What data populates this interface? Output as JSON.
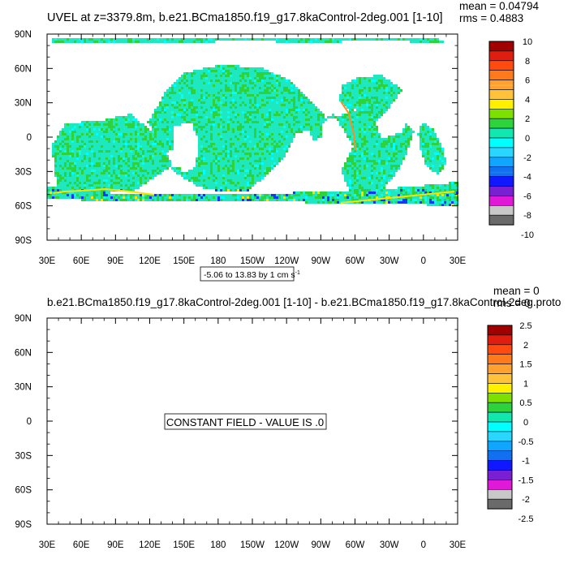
{
  "chart_data": [
    {
      "type": "heatmap",
      "title": "UVEL at z=3379.8m, b.e21.BCma1850.f19_g17.8kaControl-2deg.001 [1-10]",
      "stats": [
        "mean = 0.04794",
        "rms = 0.4883"
      ],
      "info": "-5.06 to 13.83 by 1 cm s",
      "info_superscript": "-1",
      "x_ticks": [
        "30E",
        "60E",
        "90E",
        "120E",
        "150E",
        "180",
        "150W",
        "120W",
        "90W",
        "60W",
        "30W",
        "0",
        "30E"
      ],
      "y_ticks": [
        "90N",
        "60N",
        "30N",
        "0",
        "30S",
        "60S",
        "90S"
      ],
      "colorbar_labels": [
        "10",
        "8",
        "6",
        "4",
        "2",
        "0",
        "-2",
        "-4",
        "-6",
        "-8",
        "-10"
      ],
      "colorbar_colors": [
        "#a00000",
        "#e01e10",
        "#ff4a10",
        "#ff7a1a",
        "#ffa030",
        "#ffc23a",
        "#fff000",
        "#7ee000",
        "#2ed23a",
        "#10e8b0",
        "#00ffff",
        "#28d6ff",
        "#10a6ff",
        "#1270f0",
        "#1018ff",
        "#7820d2",
        "#e018d8",
        "#c8c8c8",
        "#6a6a6a"
      ],
      "colorbar_gaps": [
        "#ffb040",
        "#1e7ef0"
      ],
      "field_colors": {
        "dominant": "#1ee8c0",
        "secondary": "#2ed23a",
        "light": "#00ffff",
        "blue": "#1238ff",
        "yellow": "#ffe100",
        "orange": "#ff8c1a"
      }
    },
    {
      "type": "heatmap",
      "title": "b.e21.BCma1850.f19_g17.8kaControl-2deg.001 [1-10] - b.e21.BCma1850.f19_g17.8kaControl-2deg.proto",
      "stats": [
        "mean = 0",
        "rms = 0"
      ],
      "annotation": "CONSTANT FIELD - VALUE IS .0",
      "x_ticks": [
        "30E",
        "60E",
        "90E",
        "120E",
        "150E",
        "180",
        "150W",
        "120W",
        "90W",
        "60W",
        "30W",
        "0",
        "30E"
      ],
      "y_ticks": [
        "90N",
        "60N",
        "30N",
        "0",
        "30S",
        "60S",
        "90S"
      ],
      "colorbar_labels": [
        "2.5",
        "2",
        "1.5",
        "1",
        "0.5",
        "0",
        "-0.5",
        "-1",
        "-1.5",
        "-2",
        "-2.5"
      ],
      "colorbar_colors": [
        "#a00000",
        "#e01e10",
        "#ff4a10",
        "#ff7a1a",
        "#ffa030",
        "#ffc23a",
        "#fff000",
        "#7ee000",
        "#2ed23a",
        "#10e8b0",
        "#00ffff",
        "#28d6ff",
        "#10a6ff",
        "#1270f0",
        "#1018ff",
        "#7820d2",
        "#e018d8",
        "#c8c8c8",
        "#6a6a6a"
      ]
    }
  ]
}
